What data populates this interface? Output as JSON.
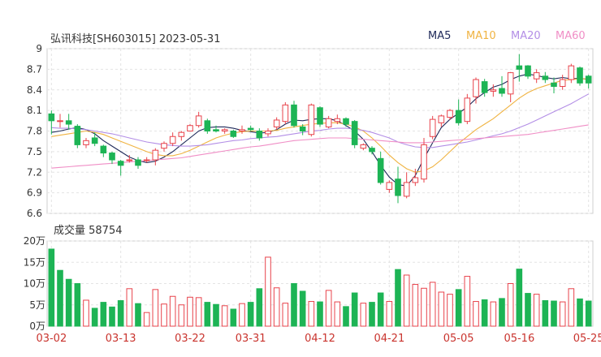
{
  "header": {
    "title": "弘讯科技[SH603015] 2023-05-31"
  },
  "legend": [
    {
      "key": "ma5",
      "label": "MA5",
      "color": "#1f2a5a"
    },
    {
      "key": "ma10",
      "label": "MA10",
      "color": "#f0b341"
    },
    {
      "key": "ma20",
      "label": "MA20",
      "color": "#b38ee6"
    },
    {
      "key": "ma60",
      "label": "MA60",
      "color": "#f08ec6"
    }
  ],
  "volume_panel": {
    "label": "成交量 58754"
  },
  "colors": {
    "up": "#e8434b",
    "down": "#1db455",
    "grid": "#e4e4e4"
  },
  "chart_data": [
    {
      "type": "candlestick",
      "title": "弘讯科技[SH603015] 2023-05-31",
      "ylim": [
        6.6,
        9.0
      ],
      "yticks": [
        "9",
        "8.7",
        "8.4",
        "8.1",
        "7.8",
        "7.5",
        "7.2",
        "6.9",
        "6.6"
      ],
      "xticks": [
        "03-02",
        "03-13",
        "03-22",
        "03-31",
        "04-12",
        "04-21",
        "05-05",
        "05-16",
        "05-25"
      ],
      "ohlc": [
        [
          8.05,
          7.95,
          8.1,
          7.75
        ],
        [
          7.95,
          7.95,
          8.05,
          7.85
        ],
        [
          7.95,
          7.9,
          8.05,
          7.82
        ],
        [
          7.87,
          7.6,
          7.9,
          7.55
        ],
        [
          7.6,
          7.66,
          7.7,
          7.55
        ],
        [
          7.7,
          7.62,
          7.78,
          7.58
        ],
        [
          7.58,
          7.48,
          7.6,
          7.42
        ],
        [
          7.48,
          7.38,
          7.5,
          7.32
        ],
        [
          7.36,
          7.3,
          7.38,
          7.15
        ],
        [
          7.38,
          7.38,
          7.45,
          7.34
        ],
        [
          7.38,
          7.3,
          7.42,
          7.25
        ],
        [
          7.38,
          7.38,
          7.42,
          7.34
        ],
        [
          7.38,
          7.52,
          7.55,
          7.3
        ],
        [
          7.55,
          7.62,
          7.65,
          7.5
        ],
        [
          7.62,
          7.72,
          7.78,
          7.58
        ],
        [
          7.72,
          7.78,
          7.8,
          7.66
        ],
        [
          7.8,
          7.88,
          7.9,
          7.8
        ],
        [
          7.88,
          8.02,
          8.08,
          7.85
        ],
        [
          7.95,
          7.8,
          7.98,
          7.76
        ],
        [
          7.82,
          7.8,
          7.88,
          7.78
        ],
        [
          7.8,
          7.82,
          7.84,
          7.76
        ],
        [
          7.8,
          7.72,
          7.82,
          7.7
        ],
        [
          7.8,
          7.82,
          7.88,
          7.76
        ],
        [
          7.84,
          7.82,
          7.88,
          7.8
        ],
        [
          7.8,
          7.7,
          7.84,
          7.66
        ],
        [
          7.76,
          7.8,
          7.84,
          7.72
        ],
        [
          7.86,
          7.96,
          8.0,
          7.82
        ],
        [
          7.94,
          8.18,
          8.22,
          7.9
        ],
        [
          8.18,
          7.88,
          8.24,
          7.85
        ],
        [
          7.86,
          7.8,
          7.9,
          7.74
        ],
        [
          7.75,
          8.18,
          8.2,
          7.72
        ],
        [
          8.14,
          7.9,
          8.16,
          7.86
        ],
        [
          7.86,
          7.98,
          8.02,
          7.84
        ],
        [
          7.94,
          7.98,
          8.04,
          7.9
        ],
        [
          7.98,
          7.9,
          8.0,
          7.86
        ],
        [
          7.94,
          7.6,
          7.96,
          7.55
        ],
        [
          7.55,
          7.6,
          7.62,
          7.52
        ],
        [
          7.55,
          7.5,
          7.58,
          7.46
        ],
        [
          7.4,
          7.05,
          7.5,
          7.02
        ],
        [
          6.95,
          7.05,
          7.08,
          6.9
        ],
        [
          7.1,
          6.86,
          7.28,
          6.75
        ],
        [
          6.85,
          7.05,
          7.2,
          6.82
        ],
        [
          7.05,
          7.12,
          7.25,
          7.0
        ],
        [
          7.1,
          7.6,
          7.7,
          7.05
        ],
        [
          7.72,
          7.97,
          8.02,
          7.68
        ],
        [
          7.92,
          8.02,
          8.04,
          7.86
        ],
        [
          8.0,
          8.1,
          8.12,
          7.96
        ],
        [
          8.1,
          7.92,
          8.26,
          7.88
        ],
        [
          7.94,
          8.28,
          8.34,
          7.9
        ],
        [
          8.3,
          8.55,
          8.58,
          8.2
        ],
        [
          8.52,
          8.36,
          8.56,
          8.3
        ],
        [
          8.38,
          8.4,
          8.48,
          8.3
        ],
        [
          8.42,
          8.35,
          8.6,
          8.3
        ],
        [
          8.34,
          8.65,
          8.66,
          8.22
        ],
        [
          8.75,
          8.7,
          8.92,
          8.52
        ],
        [
          8.75,
          8.6,
          8.76,
          8.56
        ],
        [
          8.56,
          8.65,
          8.7,
          8.5
        ],
        [
          8.6,
          8.55,
          8.66,
          8.5
        ],
        [
          8.5,
          8.45,
          8.58,
          8.35
        ],
        [
          8.45,
          8.55,
          8.62,
          8.4
        ],
        [
          8.55,
          8.75,
          8.78,
          8.5
        ],
        [
          8.72,
          8.5,
          8.74,
          8.46
        ],
        [
          8.6,
          8.5,
          8.62,
          8.42
        ]
      ],
      "ma_lines": {
        "ma5": [
          7.78,
          7.8,
          7.83,
          7.85,
          7.82,
          7.76,
          7.66,
          7.58,
          7.5,
          7.42,
          7.37,
          7.34,
          7.36,
          7.42,
          7.5,
          7.6,
          7.7,
          7.8,
          7.85,
          7.86,
          7.86,
          7.84,
          7.81,
          7.79,
          7.77,
          7.78,
          7.82,
          7.9,
          7.96,
          7.95,
          7.97,
          7.98,
          7.98,
          7.95,
          7.88,
          7.8,
          7.68,
          7.5,
          7.3,
          7.13,
          7.02,
          7.0,
          7.15,
          7.4,
          7.63,
          7.85,
          7.97,
          8.06,
          8.15,
          8.27,
          8.36,
          8.44,
          8.48,
          8.55,
          8.6,
          8.63,
          8.61,
          8.58,
          8.56,
          8.58,
          8.56,
          8.57,
          8.55
        ],
        "ma10": [
          7.72,
          7.74,
          7.76,
          7.78,
          7.8,
          7.78,
          7.75,
          7.7,
          7.65,
          7.6,
          7.55,
          7.5,
          7.46,
          7.44,
          7.44,
          7.47,
          7.52,
          7.58,
          7.64,
          7.7,
          7.74,
          7.77,
          7.79,
          7.8,
          7.8,
          7.8,
          7.81,
          7.84,
          7.86,
          7.88,
          7.9,
          7.91,
          7.92,
          7.92,
          7.9,
          7.86,
          7.8,
          7.7,
          7.58,
          7.45,
          7.34,
          7.25,
          7.2,
          7.22,
          7.28,
          7.38,
          7.5,
          7.62,
          7.72,
          7.82,
          7.9,
          7.98,
          8.08,
          8.18,
          8.28,
          8.36,
          8.42,
          8.46,
          8.5,
          8.54,
          8.55,
          8.56,
          8.56
        ],
        "ma20": [
          7.85,
          7.84,
          7.84,
          7.83,
          7.82,
          7.8,
          7.78,
          7.76,
          7.73,
          7.7,
          7.67,
          7.64,
          7.62,
          7.6,
          7.59,
          7.58,
          7.58,
          7.59,
          7.6,
          7.62,
          7.64,
          7.66,
          7.67,
          7.69,
          7.7,
          7.71,
          7.72,
          7.74,
          7.76,
          7.78,
          7.8,
          7.81,
          7.83,
          7.84,
          7.84,
          7.83,
          7.81,
          7.78,
          7.74,
          7.7,
          7.64,
          7.6,
          7.57,
          7.56,
          7.56,
          7.58,
          7.6,
          7.62,
          7.64,
          7.67,
          7.7,
          7.73,
          7.76,
          7.8,
          7.85,
          7.9,
          7.96,
          8.02,
          8.08,
          8.14,
          8.2,
          8.27,
          8.34
        ],
        "ma60": [
          7.26,
          7.27,
          7.28,
          7.29,
          7.3,
          7.31,
          7.32,
          7.33,
          7.34,
          7.35,
          7.36,
          7.37,
          7.38,
          7.39,
          7.4,
          7.41,
          7.43,
          7.45,
          7.47,
          7.49,
          7.51,
          7.53,
          7.55,
          7.57,
          7.58,
          7.6,
          7.62,
          7.64,
          7.66,
          7.67,
          7.68,
          7.69,
          7.7,
          7.7,
          7.7,
          7.69,
          7.68,
          7.67,
          7.66,
          7.65,
          7.64,
          7.63,
          7.63,
          7.63,
          7.64,
          7.65,
          7.66,
          7.67,
          7.68,
          7.69,
          7.7,
          7.71,
          7.72,
          7.73,
          7.74,
          7.75,
          7.77,
          7.79,
          7.81,
          7.83,
          7.85,
          7.87,
          7.89
        ]
      }
    },
    {
      "type": "bar",
      "title": "成交量 58754",
      "ylim": [
        0,
        200000
      ],
      "yticks": [
        "20万",
        "15万",
        "10万",
        "5万",
        "0万"
      ],
      "values": [
        181000,
        131000,
        110000,
        100000,
        61000,
        42000,
        56000,
        45000,
        60000,
        88000,
        53000,
        32000,
        86000,
        52000,
        70000,
        50000,
        68000,
        67000,
        56000,
        51000,
        48000,
        40000,
        53000,
        56000,
        88000,
        162000,
        90000,
        54000,
        100000,
        82000,
        58000,
        57000,
        84000,
        57000,
        46000,
        78000,
        54000,
        56000,
        78000,
        58000,
        133000,
        120000,
        98000,
        89000,
        103000,
        80000,
        75000,
        86000,
        117000,
        58000,
        62000,
        57000,
        65000,
        100000,
        134000,
        77000,
        75000,
        60000,
        59000,
        57000,
        88000,
        64000,
        59000
      ],
      "up": [
        false,
        false,
        false,
        false,
        true,
        false,
        false,
        false,
        false,
        true,
        false,
        true,
        true,
        true,
        true,
        true,
        true,
        true,
        false,
        false,
        true,
        false,
        true,
        false,
        false,
        true,
        true,
        true,
        false,
        false,
        true,
        false,
        true,
        true,
        false,
        false,
        true,
        false,
        false,
        true,
        false,
        true,
        true,
        true,
        true,
        true,
        true,
        false,
        true,
        true,
        false,
        true,
        false,
        true,
        false,
        false,
        true,
        false,
        false,
        true,
        true,
        false,
        false
      ]
    }
  ]
}
